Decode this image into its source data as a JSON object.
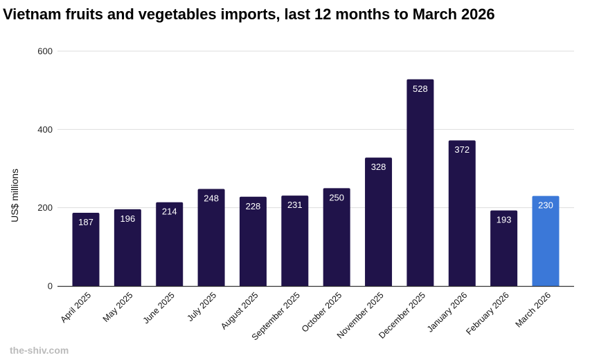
{
  "chart_data": {
    "type": "bar",
    "title": "Vietnam fruits and vegetables imports, last 12 months to March 2026",
    "xlabel": "",
    "ylabel": "US$ millions",
    "ylim": [
      0,
      600
    ],
    "yticks": [
      0,
      200,
      400,
      600
    ],
    "grid": true,
    "categories": [
      "April 2025",
      "May 2025",
      "June 2025",
      "July 2025",
      "August 2025",
      "September 2025",
      "October 2025",
      "November 2025",
      "December 2025",
      "January 2026",
      "February 2026",
      "March 2026"
    ],
    "values": [
      187,
      196,
      214,
      248,
      228,
      231,
      250,
      328,
      528,
      372,
      193,
      230
    ],
    "data_labels": [
      "187",
      "196",
      "214",
      "248",
      "228",
      "231",
      "250",
      "328",
      "528",
      "372",
      "193",
      "230"
    ],
    "highlight_index": 11,
    "colors": {
      "bar": "#20134a",
      "highlight": "#3b78d8",
      "grid": "#dddddd",
      "axis": "#333333"
    }
  },
  "watermark": "the-shiv.com"
}
